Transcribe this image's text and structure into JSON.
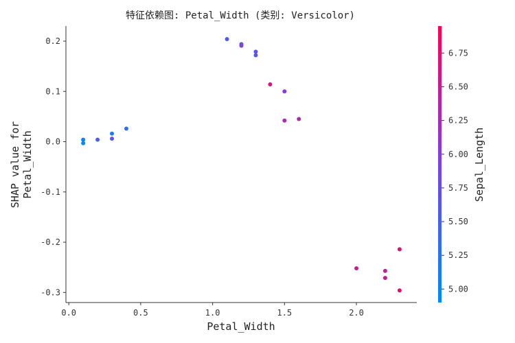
{
  "chart_data": {
    "type": "scatter",
    "title": "特征依赖图: Petal_Width (类别: Versicolor)",
    "xlabel": "Petal_Width",
    "ylabel_lines": [
      "SHAP value for",
      "Petal_Width"
    ],
    "xlim": [
      -0.02,
      2.42
    ],
    "ylim": [
      -0.32,
      0.23
    ],
    "xticks": [
      0.0,
      0.5,
      1.0,
      1.5,
      2.0
    ],
    "xtick_labels": [
      "0.0",
      "0.5",
      "1.0",
      "1.5",
      "2.0"
    ],
    "yticks": [
      0.2,
      0.1,
      0.0,
      -0.1,
      -0.2,
      -0.3
    ],
    "ytick_labels": [
      "0.2",
      "0.1",
      "0.0",
      "-0.1",
      "-0.2",
      "-0.3"
    ],
    "grid": false,
    "colorbar": {
      "label": "Sepal_Length",
      "range": [
        4.9,
        6.95
      ],
      "ticks": [
        5.0,
        5.25,
        5.5,
        5.75,
        6.0,
        6.25,
        6.5,
        6.75
      ],
      "tick_labels": [
        "5.00",
        "5.25",
        "5.50",
        "5.75",
        "6.00",
        "6.25",
        "6.50",
        "6.75"
      ],
      "colors": [
        "#008afb",
        "#7a42e6",
        "#ff0052"
      ]
    },
    "points": [
      {
        "x": 0.1,
        "y": 0.004,
        "c": 5.0
      },
      {
        "x": 0.1,
        "y": -0.003,
        "c": 4.9
      },
      {
        "x": 0.2,
        "y": 0.004,
        "c": 5.5
      },
      {
        "x": 0.3,
        "y": 0.016,
        "c": 5.1
      },
      {
        "x": 0.3,
        "y": 0.006,
        "c": 5.7
      },
      {
        "x": 0.4,
        "y": 0.026,
        "c": 5.3
      },
      {
        "x": 1.1,
        "y": 0.204,
        "c": 5.6
      },
      {
        "x": 1.2,
        "y": 0.194,
        "c": 5.8
      },
      {
        "x": 1.2,
        "y": 0.191,
        "c": 5.9
      },
      {
        "x": 1.3,
        "y": 0.179,
        "c": 5.7
      },
      {
        "x": 1.3,
        "y": 0.172,
        "c": 5.6
      },
      {
        "x": 1.4,
        "y": 0.114,
        "c": 6.6
      },
      {
        "x": 1.5,
        "y": 0.1,
        "c": 6.0
      },
      {
        "x": 1.5,
        "y": 0.042,
        "c": 6.3
      },
      {
        "x": 1.6,
        "y": 0.045,
        "c": 6.3
      },
      {
        "x": 2.0,
        "y": -0.252,
        "c": 6.5
      },
      {
        "x": 2.2,
        "y": -0.257,
        "c": 6.4
      },
      {
        "x": 2.2,
        "y": -0.271,
        "c": 6.5
      },
      {
        "x": 2.3,
        "y": -0.214,
        "c": 6.7
      },
      {
        "x": 2.3,
        "y": -0.296,
        "c": 6.8
      }
    ]
  }
}
